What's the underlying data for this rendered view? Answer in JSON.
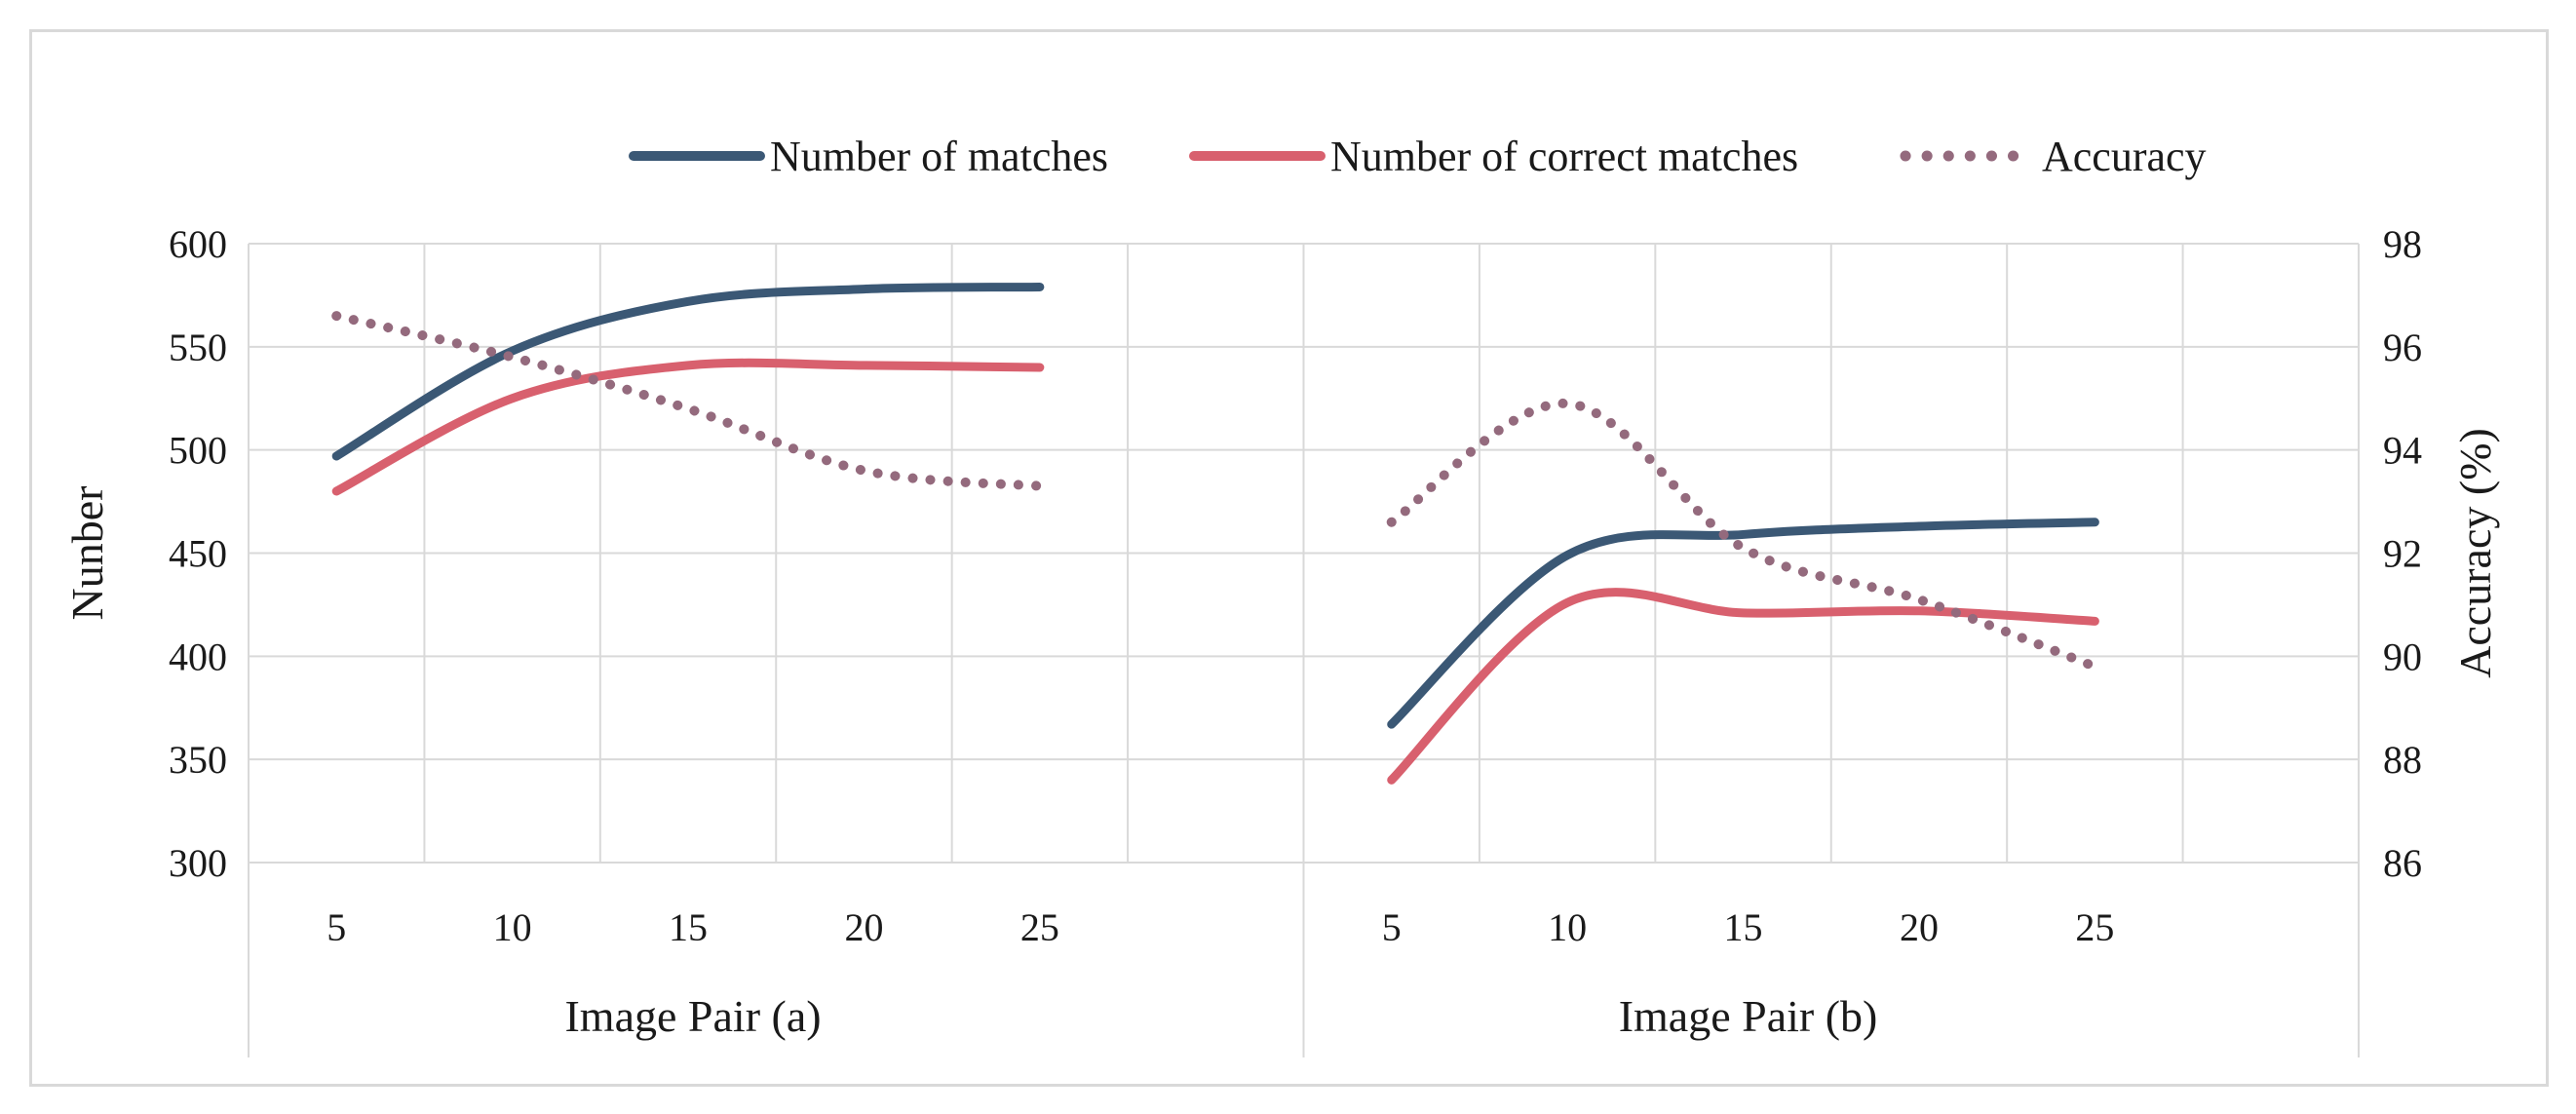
{
  "chart_data": {
    "type": "line",
    "y_left_label": "Nunber",
    "y_right_label": "Accuracy (%)",
    "y_left_ticks": [
      300,
      350,
      400,
      450,
      500,
      550,
      600
    ],
    "y_right_ticks": [
      86,
      88,
      90,
      92,
      94,
      96,
      98
    ],
    "ylim_left": [
      300,
      600
    ],
    "ylim_right": [
      86,
      98
    ],
    "grid": true,
    "legend_position": "top",
    "groups": [
      {
        "label": "Image Pair (a)",
        "x": [
          "5",
          "10",
          "15",
          "20",
          "25"
        ],
        "series": [
          {
            "name": "Number of  matches",
            "axis": "left",
            "values": [
              497,
              548,
              572,
              578,
              579
            ]
          },
          {
            "name": "Number of correct matches",
            "axis": "left",
            "values": [
              480,
              525,
              541,
              541,
              540
            ]
          },
          {
            "name": "Accuracy",
            "axis": "right",
            "values": [
              96.6,
              95.8,
              94.8,
              93.6,
              93.3
            ]
          }
        ]
      },
      {
        "label": "Image Pair (b)",
        "x": [
          "5",
          "10",
          "15",
          "20",
          "25"
        ],
        "series": [
          {
            "name": "Number of  matches",
            "axis": "left",
            "values": [
              367,
              449,
              459,
              463,
              465
            ]
          },
          {
            "name": "Number of correct matches",
            "axis": "left",
            "values": [
              340,
              426,
              421,
              422,
              417
            ]
          },
          {
            "name": "Accuracy",
            "axis": "right",
            "values": [
              92.6,
              94.9,
              92.1,
              91.1,
              89.8
            ]
          }
        ]
      }
    ],
    "legend": [
      {
        "name": "Number of  matches",
        "color": "#3b5875",
        "style": "solid"
      },
      {
        "name": "Number of correct matches",
        "color": "#d8606e",
        "style": "solid"
      },
      {
        "name": "Accuracy",
        "color": "#946a7d",
        "style": "dotted"
      }
    ]
  }
}
